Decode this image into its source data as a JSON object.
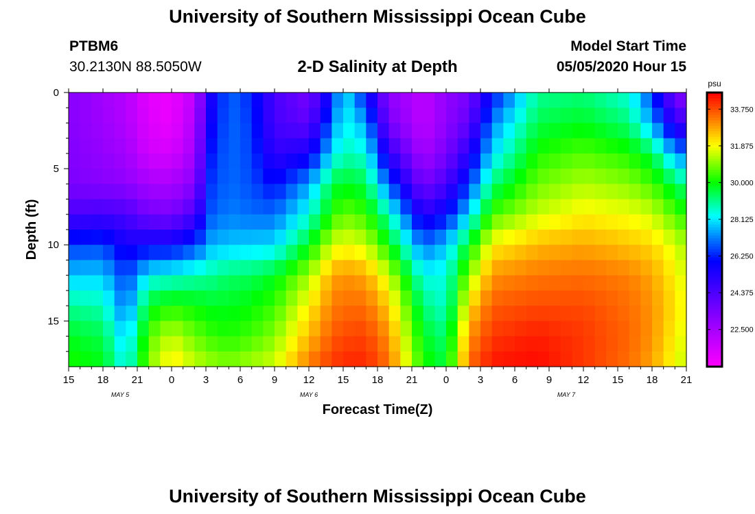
{
  "page": {
    "title_top": "University of Southern Mississippi Ocean Cube",
    "title_bottom": "University of Southern Mississippi Ocean Cube",
    "station_id": "PTBM6",
    "station_coords": "30.2130N 88.5050W",
    "subtitle": "2-D Salinity at Depth",
    "model_start_label": "Model Start Time",
    "model_start_value": "05/05/2020 Hour 15"
  },
  "chart_data": {
    "type": "heatmap",
    "title": "2-D Salinity at Depth",
    "xlabel": "Forecast Time(Z)",
    "ylabel": "Depth (ft)",
    "x_range_hours": [
      0,
      54
    ],
    "y_range_ft": [
      0,
      18
    ],
    "x_ticks": [
      {
        "h": 0,
        "label": "15"
      },
      {
        "h": 3,
        "label": "18"
      },
      {
        "h": 6,
        "label": "21"
      },
      {
        "h": 9,
        "label": "0"
      },
      {
        "h": 12,
        "label": "3"
      },
      {
        "h": 15,
        "label": "6"
      },
      {
        "h": 18,
        "label": "9"
      },
      {
        "h": 21,
        "label": "12"
      },
      {
        "h": 24,
        "label": "15"
      },
      {
        "h": 27,
        "label": "18"
      },
      {
        "h": 30,
        "label": "21"
      },
      {
        "h": 33,
        "label": "0"
      },
      {
        "h": 36,
        "label": "3"
      },
      {
        "h": 39,
        "label": "6"
      },
      {
        "h": 42,
        "label": "9"
      },
      {
        "h": 45,
        "label": "12"
      },
      {
        "h": 48,
        "label": "15"
      },
      {
        "h": 51,
        "label": "18"
      },
      {
        "h": 54,
        "label": "21"
      }
    ],
    "date_labels": [
      {
        "h": 4.5,
        "label": "MAY 5"
      },
      {
        "h": 21,
        "label": "MAY 6"
      },
      {
        "h": 43.5,
        "label": "MAY 7"
      }
    ],
    "y_ticks": [
      {
        "v": 0,
        "label": "0"
      },
      {
        "v": 5,
        "label": "5"
      },
      {
        "v": 10,
        "label": "10"
      },
      {
        "v": 15,
        "label": "15"
      }
    ],
    "colorbar": {
      "unit": "psu",
      "min": 20.6,
      "max": 34.6,
      "ticks": [
        {
          "v": 22.5,
          "label": "22.500"
        },
        {
          "v": 24.375,
          "label": "24.375"
        },
        {
          "v": 26.25,
          "label": "26.250"
        },
        {
          "v": 28.125,
          "label": "28.125"
        },
        {
          "v": 30.0,
          "label": "30.000"
        },
        {
          "v": 31.875,
          "label": "31.875"
        },
        {
          "v": 33.75,
          "label": "33.750"
        }
      ],
      "stops": [
        {
          "v": 20.6,
          "color": "#ff00ff"
        },
        {
          "v": 23.0,
          "color": "#9000ff"
        },
        {
          "v": 26.0,
          "color": "#0000ff"
        },
        {
          "v": 27.2,
          "color": "#0080ff"
        },
        {
          "v": 28.3,
          "color": "#00ffff"
        },
        {
          "v": 30.0,
          "color": "#00ff00"
        },
        {
          "v": 31.9,
          "color": "#ffff00"
        },
        {
          "v": 33.2,
          "color": "#ff8000"
        },
        {
          "v": 34.6,
          "color": "#ff0000"
        }
      ]
    },
    "depth_levels_ft": [
      0,
      2,
      4,
      6,
      8,
      10,
      12,
      14,
      16,
      18
    ],
    "salinity_profiles": [
      {
        "h": 0,
        "s": [
          23.2,
          23.2,
          23.3,
          23.4,
          24.5,
          26.5,
          27.8,
          29.0,
          29.8,
          30.2
        ]
      },
      {
        "h": 3,
        "s": [
          22.6,
          22.7,
          22.9,
          23.2,
          24.6,
          26.6,
          27.9,
          28.8,
          29.5,
          29.9
        ]
      },
      {
        "h": 5,
        "s": [
          22.2,
          22.3,
          22.6,
          23.0,
          24.5,
          25.5,
          26.5,
          27.0,
          27.8,
          28.3
        ]
      },
      {
        "h": 7,
        "s": [
          21.2,
          21.3,
          21.6,
          22.5,
          23.6,
          25.8,
          28.3,
          29.8,
          30.6,
          31.0
        ]
      },
      {
        "h": 9,
        "s": [
          21.0,
          21.0,
          21.5,
          22.4,
          23.5,
          25.8,
          28.5,
          30.2,
          31.5,
          32.2
        ]
      },
      {
        "h": 11,
        "s": [
          22.0,
          22.3,
          22.6,
          23.2,
          24.5,
          26.5,
          28.8,
          30.0,
          30.8,
          31.5
        ]
      },
      {
        "h": 12.5,
        "s": [
          25.5,
          25.8,
          26.2,
          26.5,
          26.8,
          27.6,
          29.0,
          29.8,
          30.4,
          31.2
        ]
      },
      {
        "h": 14,
        "s": [
          27.0,
          27.0,
          27.0,
          27.0,
          27.2,
          27.8,
          29.3,
          29.8,
          30.2,
          31.0
        ]
      },
      {
        "h": 16,
        "s": [
          26.3,
          26.5,
          26.6,
          26.7,
          27.0,
          27.9,
          29.4,
          30.0,
          30.5,
          31.3
        ]
      },
      {
        "h": 18,
        "s": [
          24.5,
          24.5,
          25.0,
          26.0,
          27.0,
          28.0,
          29.8,
          30.4,
          31.0,
          31.6
        ]
      },
      {
        "h": 21,
        "s": [
          23.5,
          24.0,
          25.5,
          27.5,
          28.5,
          29.8,
          31.2,
          32.0,
          32.6,
          33.3
        ]
      },
      {
        "h": 23,
        "s": [
          26.0,
          27.0,
          28.0,
          29.5,
          30.2,
          31.5,
          32.8,
          33.2,
          33.6,
          34.0
        ]
      },
      {
        "h": 24,
        "s": [
          28.3,
          28.4,
          28.8,
          29.8,
          30.8,
          31.8,
          33.0,
          33.4,
          33.8,
          34.2
        ]
      },
      {
        "h": 26,
        "s": [
          26.0,
          27.5,
          28.5,
          29.5,
          30.4,
          31.5,
          32.8,
          33.4,
          33.9,
          34.2
        ]
      },
      {
        "h": 28,
        "s": [
          23.0,
          23.5,
          25.0,
          26.8,
          28.8,
          30.0,
          31.5,
          32.4,
          33.0,
          33.4
        ]
      },
      {
        "h": 31,
        "s": [
          22.0,
          22.0,
          22.5,
          23.5,
          25.2,
          27.0,
          28.4,
          29.2,
          29.8,
          30.2
        ]
      },
      {
        "h": 33,
        "s": [
          23.0,
          23.0,
          23.5,
          24.5,
          26.0,
          27.8,
          28.5,
          28.6,
          29.2,
          29.6
        ]
      },
      {
        "h": 35,
        "s": [
          23.5,
          24.0,
          25.2,
          26.5,
          28.0,
          29.8,
          31.0,
          32.2,
          33.0,
          33.5
        ]
      },
      {
        "h": 37,
        "s": [
          26.0,
          27.2,
          28.0,
          29.2,
          30.5,
          32.0,
          33.0,
          33.6,
          34.0,
          34.4
        ]
      },
      {
        "h": 41,
        "s": [
          29.0,
          29.5,
          30.2,
          30.8,
          31.5,
          32.6,
          33.3,
          33.8,
          34.3,
          34.5
        ]
      },
      {
        "h": 45,
        "s": [
          29.2,
          29.8,
          30.6,
          31.3,
          32.0,
          32.8,
          33.4,
          33.8,
          34.0,
          34.0
        ]
      },
      {
        "h": 49,
        "s": [
          28.5,
          29.2,
          30.2,
          31.0,
          31.8,
          32.5,
          33.2,
          33.4,
          33.5,
          33.4
        ]
      },
      {
        "h": 51,
        "s": [
          26.5,
          27.5,
          29.5,
          30.5,
          31.5,
          32.3,
          32.8,
          33.0,
          33.0,
          32.8
        ]
      },
      {
        "h": 53,
        "s": [
          23.5,
          25.0,
          27.5,
          29.5,
          30.6,
          31.6,
          32.0,
          32.2,
          32.0,
          31.8
        ]
      },
      {
        "h": 54,
        "s": [
          23.0,
          24.5,
          27.0,
          29.0,
          30.2,
          31.2,
          31.5,
          31.8,
          31.6,
          31.4
        ]
      }
    ]
  }
}
